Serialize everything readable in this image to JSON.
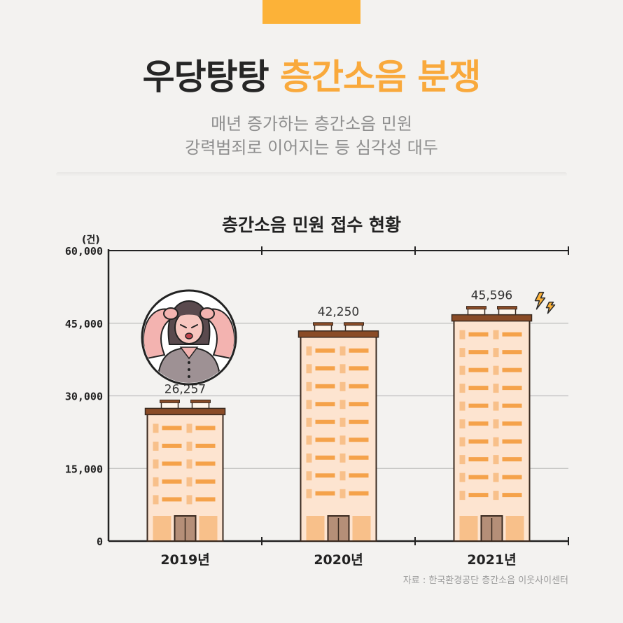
{
  "header": {
    "title_part1": "우당탕탕",
    "title_part2": "층간소음 분쟁",
    "subtitle_line1": "매년 증가하는 층간소음 민원",
    "subtitle_line2": "강력범죄로 이어지는 등 심각성 대두"
  },
  "chart_data": {
    "type": "bar",
    "title": "층간소음 민원 접수 현황",
    "unit": "(건)",
    "categories": [
      "2019년",
      "2020년",
      "2021년"
    ],
    "values": [
      26257,
      42250,
      45596
    ],
    "value_labels": [
      "26,257",
      "42,250",
      "45,596"
    ],
    "yticks": [
      0,
      15000,
      30000,
      45000,
      60000
    ],
    "ytick_labels": [
      "0",
      "15,000",
      "30,000",
      "45,000",
      "60,000"
    ],
    "ylim": [
      0,
      60000
    ],
    "grid": true
  },
  "source": "자료 : 한국환경공단 층간소음 이웃사이센터",
  "colors": {
    "accent": "#f9a93c",
    "tab": "#fcb238",
    "building": "#fde4d0",
    "roof": "#8a4b26",
    "window": "#f5a24a"
  },
  "icons": {
    "illustration": "stressed-woman-icon",
    "lightning": "lightning-icon"
  }
}
